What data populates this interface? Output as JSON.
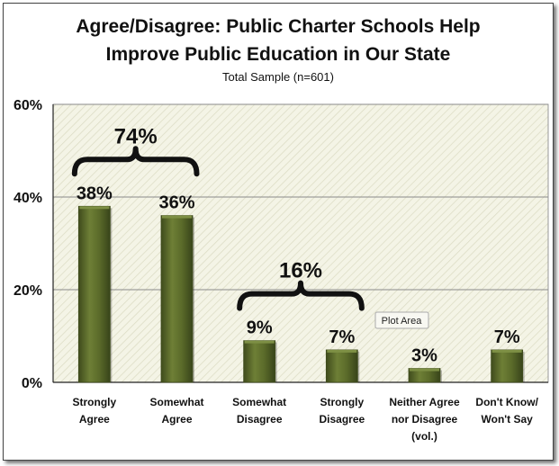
{
  "chart_data": {
    "type": "bar",
    "title_line1": "Agree/Disagree: Public Charter Schools Help",
    "title_line2": "Improve Public Education in Our State",
    "subtitle": "Total Sample (n=601)",
    "categories": [
      [
        "Strongly",
        "Agree"
      ],
      [
        "Somewhat",
        "Agree"
      ],
      [
        "Somewhat",
        "Disagree"
      ],
      [
        "Strongly",
        "Disagree"
      ],
      [
        "Neither Agree",
        "nor Disagree",
        "(vol.)"
      ],
      [
        "Don't Know/",
        "Won't Say"
      ]
    ],
    "values": [
      38,
      36,
      9,
      7,
      3,
      7
    ],
    "value_labels": [
      "38%",
      "36%",
      "9%",
      "7%",
      "3%",
      "7%"
    ],
    "ylim": [
      0,
      60
    ],
    "yticks": [
      "0%",
      "20%",
      "40%",
      "60%"
    ],
    "grid": true,
    "groups": [
      {
        "label": "74%",
        "from": 0,
        "to": 1
      },
      {
        "label": "16%",
        "from": 2,
        "to": 3
      }
    ],
    "colors": {
      "bar": "#5b6b2a",
      "bar_dark": "#3f4b1c",
      "bar_light": "#7d8f44",
      "grid": "#8a8a8a",
      "plot_bg": "#f2f2e4"
    }
  },
  "tooltip": {
    "text": "Plot Area"
  }
}
